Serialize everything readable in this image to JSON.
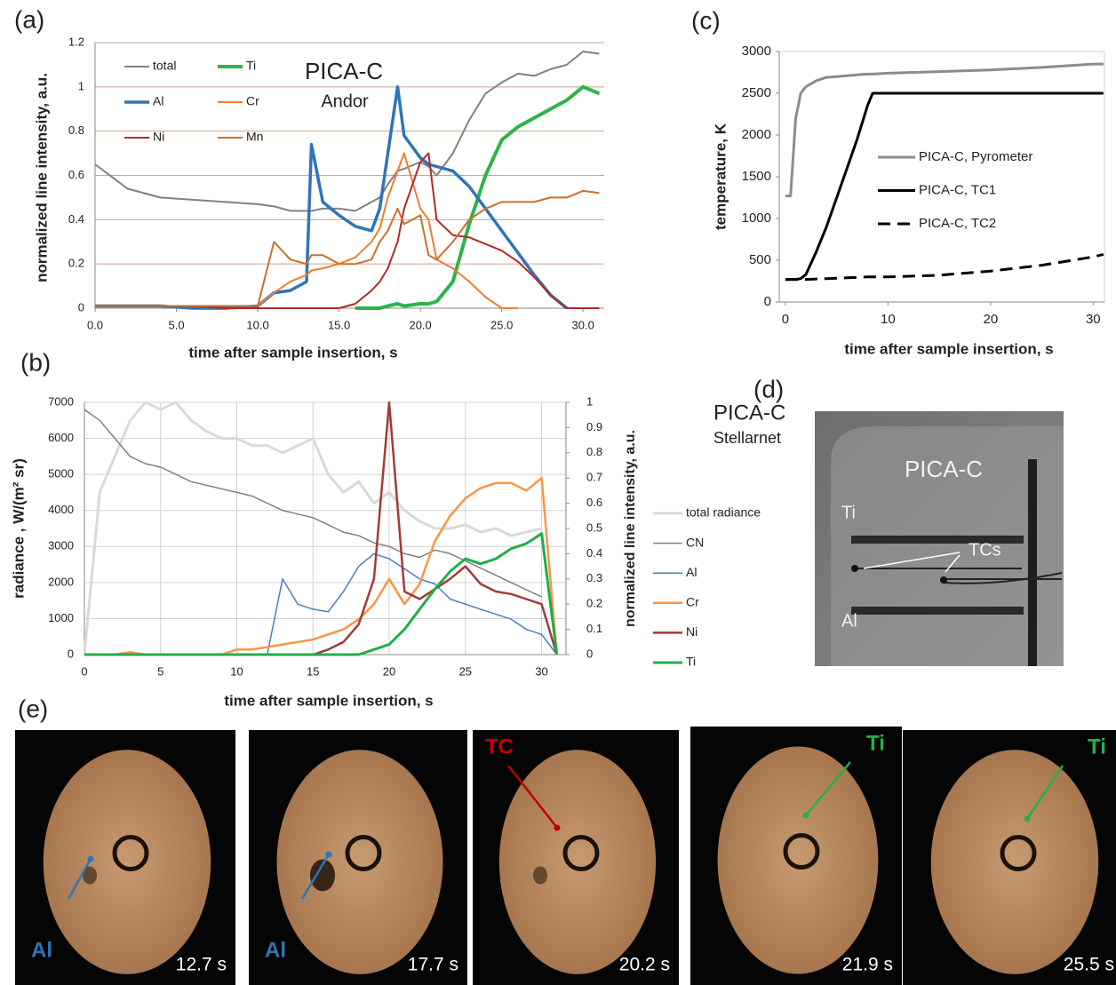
{
  "chart_data": [
    {
      "type": "line",
      "label": "(a)",
      "annotations": [
        "PICA-C",
        "Andor"
      ],
      "xlabel": "time after sample insertion, s",
      "ylabel": "normalized line intensity, a.u.",
      "xlim": [
        0,
        31.3
      ],
      "ylim": [
        0,
        1.2
      ],
      "xticks": [
        {
          "value": 0,
          "label": "0.0"
        },
        {
          "value": 5,
          "label": "5.0"
        },
        {
          "value": 10,
          "label": "10.0"
        },
        {
          "value": 15,
          "label": "15.0"
        },
        {
          "value": 20,
          "label": "20.0"
        },
        {
          "value": 25,
          "label": "25.0"
        },
        {
          "value": 30,
          "label": "30.0"
        }
      ],
      "yticks": [
        0,
        0.2,
        0.4,
        0.6,
        0.8,
        1,
        1.2
      ],
      "grid": "y",
      "grid_color": "#c9a58a",
      "x": [
        0,
        2,
        4,
        6,
        8,
        10,
        11,
        12,
        13,
        13.3,
        14,
        15,
        16,
        17,
        17.5,
        18,
        18.6,
        19,
        20,
        20.5,
        21,
        22,
        23,
        24,
        25,
        26,
        27,
        28,
        29,
        30,
        31
      ],
      "series": [
        {
          "name": "total",
          "color": "#808080",
          "values": [
            0.65,
            0.54,
            0.5,
            0.49,
            0.48,
            0.47,
            0.46,
            0.44,
            0.44,
            0.44,
            0.45,
            0.45,
            0.44,
            0.48,
            0.5,
            0.56,
            0.62,
            0.63,
            0.66,
            0.64,
            0.6,
            0.7,
            0.85,
            0.97,
            1.02,
            1.06,
            1.05,
            1.08,
            1.1,
            1.16,
            1.15
          ]
        },
        {
          "name": "Ti",
          "color": "#2db34a",
          "values": [
            null,
            null,
            null,
            null,
            null,
            null,
            null,
            null,
            null,
            null,
            null,
            null,
            0,
            0,
            0,
            0.01,
            0.02,
            0.01,
            0.02,
            0.02,
            0.03,
            0.12,
            0.38,
            0.6,
            0.76,
            0.82,
            0.86,
            0.9,
            0.94,
            1.0,
            0.97
          ]
        },
        {
          "name": "Al",
          "color": "#2e75b6",
          "values": [
            0.01,
            0.01,
            0.01,
            0,
            0,
            0.01,
            0.07,
            0.08,
            0.12,
            0.74,
            0.48,
            0.42,
            0.37,
            0.35,
            0.45,
            0.7,
            1.0,
            0.78,
            0.68,
            0.65,
            0.64,
            0.62,
            0.55,
            0.45,
            0.35,
            0.25,
            0.15,
            0.06,
            0,
            null,
            null
          ]
        },
        {
          "name": "Cr",
          "color": "#ed7d31",
          "values": [
            0.01,
            0.01,
            0.01,
            0.01,
            0.01,
            0.01,
            0.07,
            0.12,
            0.15,
            0.17,
            0.18,
            0.2,
            0.23,
            0.3,
            0.36,
            0.5,
            0.62,
            0.7,
            0.45,
            0.4,
            0.22,
            0.18,
            0.12,
            0.05,
            0,
            0,
            null,
            null,
            null,
            null,
            null
          ]
        },
        {
          "name": "Ni",
          "color": "#b22a2a",
          "values": [
            0.01,
            0.01,
            0.01,
            0.01,
            0,
            0,
            0,
            0,
            0,
            0,
            0,
            0,
            0.02,
            0.08,
            0.12,
            0.18,
            0.3,
            0.45,
            0.66,
            0.7,
            0.4,
            0.33,
            0.32,
            0.29,
            0.26,
            0.21,
            0.14,
            0.06,
            0,
            0,
            0
          ]
        },
        {
          "name": "Mn",
          "color": "#c8702a",
          "values": [
            0.01,
            0.01,
            0.01,
            0.01,
            0.01,
            0.01,
            0.3,
            0.22,
            0.2,
            0.24,
            0.24,
            0.2,
            0.2,
            0.22,
            0.3,
            0.35,
            0.45,
            0.38,
            0.42,
            0.24,
            0.22,
            0.3,
            0.4,
            0.45,
            0.48,
            0.48,
            0.48,
            0.5,
            0.5,
            0.53,
            0.52
          ]
        }
      ]
    },
    {
      "type": "line",
      "label": "(b)",
      "annotations": [
        "PICA-C",
        "Stellarnet"
      ],
      "xlabel": "time after sample insertion, s",
      "ylabel": "radiance , W/(m² sr)",
      "y2label": "normalized line intensity, a.u.",
      "xlim": [
        0,
        31.6
      ],
      "ylim": [
        0,
        7000
      ],
      "y2lim": [
        0,
        1
      ],
      "xticks": [
        0,
        5,
        10,
        15,
        20,
        25,
        30
      ],
      "yticks": [
        0,
        1000,
        2000,
        3000,
        4000,
        5000,
        6000,
        7000
      ],
      "y2ticks": [
        0,
        0.1,
        0.2,
        0.3,
        0.4,
        0.5,
        0.6,
        0.7,
        0.8,
        0.9,
        1
      ],
      "grid": "both",
      "grid_color": "#d0d0d0",
      "x": [
        0,
        1,
        2,
        3,
        4,
        5,
        6,
        7,
        8,
        9,
        10,
        11,
        12,
        13,
        14,
        15,
        16,
        17,
        18,
        19,
        20,
        21,
        22,
        23,
        24,
        25,
        26,
        27,
        28,
        29,
        30,
        31
      ],
      "series": [
        {
          "name": "total radiance",
          "color": "#d9d9d9",
          "values": [
            0,
            4500,
            5500,
            6500,
            7000,
            6800,
            7000,
            6500,
            6200,
            6000,
            6000,
            5800,
            5800,
            5600,
            5800,
            6000,
            5000,
            4500,
            4800,
            4200,
            4500,
            4000,
            3700,
            3500,
            3500,
            3600,
            3400,
            3500,
            3300,
            3400,
            3500,
            null
          ]
        },
        {
          "name": "CN",
          "color": "#808080",
          "values": [
            6800,
            6500,
            6000,
            5500,
            5300,
            5200,
            5000,
            4800,
            4700,
            4600,
            4500,
            4400,
            4200,
            4000,
            3900,
            3800,
            3600,
            3400,
            3300,
            3100,
            3000,
            2800,
            2700,
            2900,
            2800,
            2600,
            2400,
            2200,
            2000,
            1800,
            1600,
            null
          ]
        },
        {
          "name": "Al",
          "color": "#4a7ebb",
          "axis": "y2",
          "values": [
            0,
            0,
            0,
            0,
            0,
            0,
            0,
            0,
            0,
            0,
            0,
            0,
            0,
            0.3,
            0.2,
            0.18,
            0.17,
            0.25,
            0.35,
            0.4,
            0.38,
            0.34,
            0.3,
            0.28,
            0.22,
            0.2,
            0.18,
            0.16,
            0.14,
            0.1,
            0.08,
            0
          ]
        },
        {
          "name": "Cr",
          "color": "#f79646",
          "axis": "y2",
          "values": [
            0,
            0,
            0,
            0.01,
            0,
            0,
            0,
            0,
            0,
            0,
            0.02,
            0.02,
            0.03,
            0.04,
            0.05,
            0.06,
            0.08,
            0.1,
            0.14,
            0.2,
            0.3,
            0.2,
            0.28,
            0.45,
            0.55,
            0.62,
            0.66,
            0.68,
            0.68,
            0.65,
            0.7,
            0
          ]
        },
        {
          "name": "Ni",
          "color": "#a33a3a",
          "axis": "y2",
          "values": [
            null,
            null,
            null,
            null,
            null,
            null,
            null,
            null,
            null,
            null,
            null,
            null,
            null,
            null,
            null,
            0,
            0.02,
            0.05,
            0.12,
            0.3,
            1.0,
            0.25,
            0.22,
            0.26,
            0.3,
            0.35,
            0.28,
            0.25,
            0.24,
            0.22,
            0.2,
            0
          ]
        },
        {
          "name": "Ti",
          "color": "#1fae4b",
          "axis": "y2",
          "values": [
            0,
            0,
            0,
            0,
            0,
            0,
            0,
            0,
            0,
            0,
            0,
            0,
            0,
            0,
            0,
            0,
            0,
            0,
            0,
            0.02,
            0.04,
            0.1,
            0.18,
            0.26,
            0.33,
            0.38,
            0.36,
            0.38,
            0.42,
            0.44,
            0.48,
            0
          ]
        }
      ]
    },
    {
      "type": "line",
      "label": "(c)",
      "xlabel": "time after sample insertion, s",
      "ylabel": "temperature, K",
      "xlim": [
        -0.6,
        31.1
      ],
      "ylim": [
        0,
        3000
      ],
      "xticks": [
        0,
        10,
        20,
        30
      ],
      "yticks": [
        0,
        500,
        1000,
        1500,
        2000,
        2500,
        3000
      ],
      "grid": false,
      "x": [
        0,
        0.5,
        1,
        1.5,
        2,
        3,
        4,
        5,
        6,
        7,
        8,
        8.5,
        10,
        15,
        20,
        25,
        30,
        31
      ],
      "series": [
        {
          "name": "PICA-C,  Pyrometer",
          "color": "#8c8c8c",
          "values": [
            1270,
            1270,
            2200,
            2500,
            2580,
            2650,
            2690,
            2700,
            2710,
            2720,
            2730,
            2730,
            2740,
            2760,
            2780,
            2810,
            2850,
            2850
          ]
        },
        {
          "name": "PICA-C,  TC1",
          "color": "#000000",
          "values": [
            270,
            270,
            270,
            280,
            330,
            600,
            900,
            1250,
            1600,
            1950,
            2350,
            2500,
            2500,
            2500,
            2500,
            2500,
            2500,
            2500
          ]
        },
        {
          "name": "PICA-C,  TC2",
          "color": "#000000",
          "linestyle": "dashed",
          "values": [
            270,
            270,
            270,
            270,
            270,
            275,
            280,
            285,
            290,
            295,
            300,
            300,
            300,
            320,
            370,
            440,
            540,
            570
          ]
        }
      ]
    }
  ],
  "panel_d": {
    "label": "(d)",
    "title": "PICA-C",
    "ti": "Ti",
    "tcs": "TCs",
    "al": "Al"
  },
  "panel_e": {
    "label": "(e)",
    "frames": [
      {
        "marker": "Al",
        "time": "12.7 s"
      },
      {
        "marker": "Al",
        "time": "17.7 s"
      },
      {
        "marker": "TC",
        "time": "20.2 s"
      },
      {
        "marker": "Ti",
        "time": "21.9 s"
      },
      {
        "marker": "Ti",
        "time": "25.5 s"
      }
    ]
  }
}
